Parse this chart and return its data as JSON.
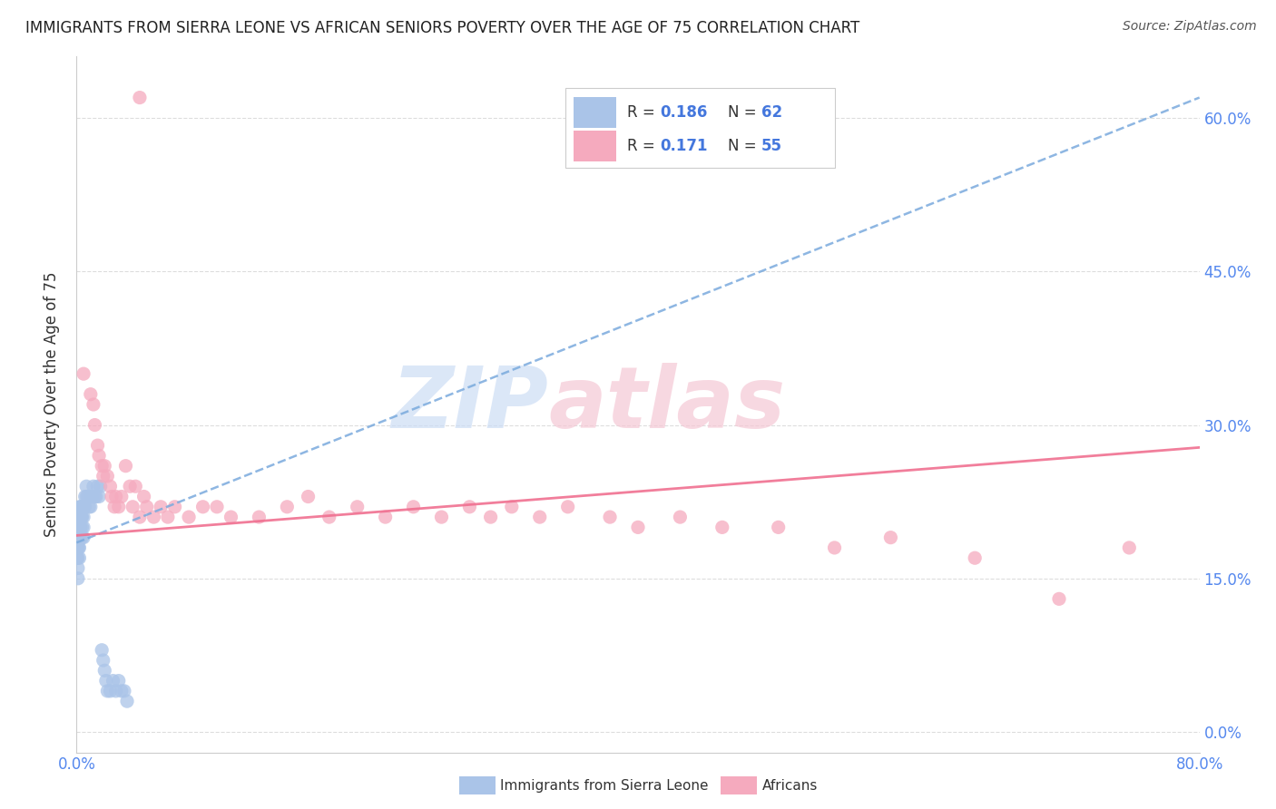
{
  "title": "IMMIGRANTS FROM SIERRA LEONE VS AFRICAN SENIORS POVERTY OVER THE AGE OF 75 CORRELATION CHART",
  "source": "Source: ZipAtlas.com",
  "ylabel": "Seniors Poverty Over the Age of 75",
  "legend_bottom": [
    "Immigrants from Sierra Leone",
    "Africans"
  ],
  "R1": 0.186,
  "N1": 62,
  "R2": 0.171,
  "N2": 55,
  "color1": "#aac4e8",
  "color2": "#f5aabe",
  "trendline1_color": "#7aaadd",
  "trendline2_color": "#f07090",
  "xlim": [
    0.0,
    0.8
  ],
  "ylim": [
    -0.02,
    0.66
  ],
  "ytick_vals": [
    0.0,
    0.15,
    0.3,
    0.45,
    0.6
  ],
  "ytick_labels": [
    "0.0%",
    "15.0%",
    "30.0%",
    "45.0%",
    "60.0%"
  ],
  "xtick_vals": [
    0.0,
    0.8
  ],
  "xtick_labels": [
    "0.0%",
    "80.0%"
  ],
  "blue_x": [
    0.0005,
    0.0005,
    0.0005,
    0.001,
    0.001,
    0.001,
    0.001,
    0.001,
    0.001,
    0.001,
    0.0015,
    0.0015,
    0.0015,
    0.0015,
    0.002,
    0.002,
    0.002,
    0.002,
    0.002,
    0.002,
    0.0025,
    0.0025,
    0.003,
    0.003,
    0.003,
    0.003,
    0.0035,
    0.0035,
    0.004,
    0.004,
    0.004,
    0.004,
    0.005,
    0.005,
    0.005,
    0.005,
    0.006,
    0.006,
    0.007,
    0.007,
    0.008,
    0.009,
    0.01,
    0.011,
    0.012,
    0.013,
    0.014,
    0.015,
    0.016,
    0.017,
    0.018,
    0.019,
    0.02,
    0.021,
    0.022,
    0.024,
    0.026,
    0.028,
    0.03,
    0.032,
    0.034,
    0.036
  ],
  "blue_y": [
    0.19,
    0.18,
    0.17,
    0.21,
    0.2,
    0.19,
    0.18,
    0.17,
    0.16,
    0.15,
    0.21,
    0.2,
    0.19,
    0.18,
    0.22,
    0.21,
    0.2,
    0.19,
    0.18,
    0.17,
    0.21,
    0.2,
    0.22,
    0.21,
    0.2,
    0.19,
    0.22,
    0.21,
    0.22,
    0.21,
    0.2,
    0.19,
    0.22,
    0.21,
    0.2,
    0.19,
    0.23,
    0.22,
    0.24,
    0.23,
    0.23,
    0.22,
    0.22,
    0.23,
    0.24,
    0.23,
    0.23,
    0.24,
    0.23,
    0.24,
    0.08,
    0.07,
    0.06,
    0.05,
    0.04,
    0.04,
    0.05,
    0.04,
    0.05,
    0.04,
    0.04,
    0.03
  ],
  "pink_x": [
    0.045,
    0.005,
    0.01,
    0.012,
    0.013,
    0.015,
    0.016,
    0.018,
    0.019,
    0.02,
    0.022,
    0.024,
    0.025,
    0.027,
    0.028,
    0.03,
    0.032,
    0.035,
    0.038,
    0.04,
    0.042,
    0.045,
    0.048,
    0.05,
    0.055,
    0.06,
    0.065,
    0.07,
    0.08,
    0.09,
    0.1,
    0.11,
    0.13,
    0.15,
    0.165,
    0.18,
    0.2,
    0.22,
    0.24,
    0.26,
    0.28,
    0.295,
    0.31,
    0.33,
    0.35,
    0.38,
    0.4,
    0.43,
    0.46,
    0.5,
    0.54,
    0.58,
    0.64,
    0.7,
    0.75
  ],
  "pink_y": [
    0.62,
    0.35,
    0.33,
    0.32,
    0.3,
    0.28,
    0.27,
    0.26,
    0.25,
    0.26,
    0.25,
    0.24,
    0.23,
    0.22,
    0.23,
    0.22,
    0.23,
    0.26,
    0.24,
    0.22,
    0.24,
    0.21,
    0.23,
    0.22,
    0.21,
    0.22,
    0.21,
    0.22,
    0.21,
    0.22,
    0.22,
    0.21,
    0.21,
    0.22,
    0.23,
    0.21,
    0.22,
    0.21,
    0.22,
    0.21,
    0.22,
    0.21,
    0.22,
    0.21,
    0.22,
    0.21,
    0.2,
    0.21,
    0.2,
    0.2,
    0.18,
    0.19,
    0.17,
    0.13,
    0.18
  ],
  "trendline1_x": [
    0.0,
    0.8
  ],
  "trendline1_y": [
    0.185,
    0.62
  ],
  "trendline2_x": [
    0.0,
    0.8
  ],
  "trendline2_y": [
    0.192,
    0.278
  ]
}
